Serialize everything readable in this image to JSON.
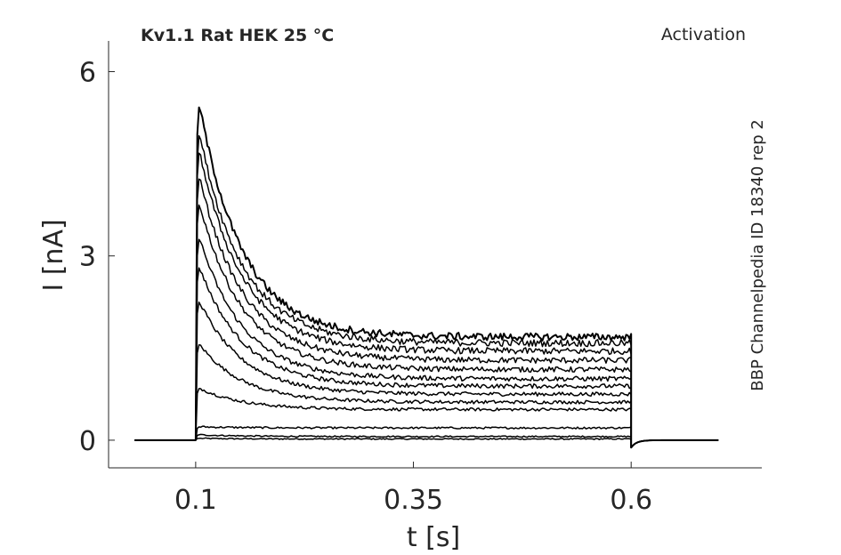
{
  "chart_data": {
    "type": "line",
    "title": "Kv1.1  Rat  HEK  25 °C",
    "subtitle": "Activation",
    "side_label": "BBP Channelpedia ID 18340 rep 2",
    "xlabel": "t [s]",
    "ylabel": "I [nA]",
    "xlim": [
      0.0,
      0.75
    ],
    "ylim": [
      -0.45,
      6.5
    ],
    "xticks": [
      0.1,
      0.35,
      0.6
    ],
    "xtick_labels": [
      "0.1",
      "0.35",
      "0.6"
    ],
    "yticks": [
      0,
      3,
      6
    ],
    "ytick_labels": [
      "0",
      "3",
      "6"
    ],
    "grid": false,
    "line_color": "#000000",
    "pulse_start": 0.1,
    "pulse_end": 0.6,
    "baseline_start": 0.03,
    "baseline_end": 0.7,
    "series": [
      {
        "peak": 0.03,
        "steady": 0.02
      },
      {
        "peak": 0.09,
        "steady": 0.06
      },
      {
        "peak": 0.22,
        "steady": 0.2
      },
      {
        "peak": 0.88,
        "steady": 0.5
      },
      {
        "peak": 1.65,
        "steady": 0.62
      },
      {
        "peak": 2.4,
        "steady": 0.75
      },
      {
        "peak": 3.0,
        "steady": 0.88
      },
      {
        "peak": 3.5,
        "steady": 1.0
      },
      {
        "peak": 4.1,
        "steady": 1.15
      },
      {
        "peak": 4.55,
        "steady": 1.3
      },
      {
        "peak": 5.0,
        "steady": 1.45
      },
      {
        "peak": 5.3,
        "steady": 1.58
      },
      {
        "peak": 5.8,
        "steady": 1.68
      }
    ]
  }
}
